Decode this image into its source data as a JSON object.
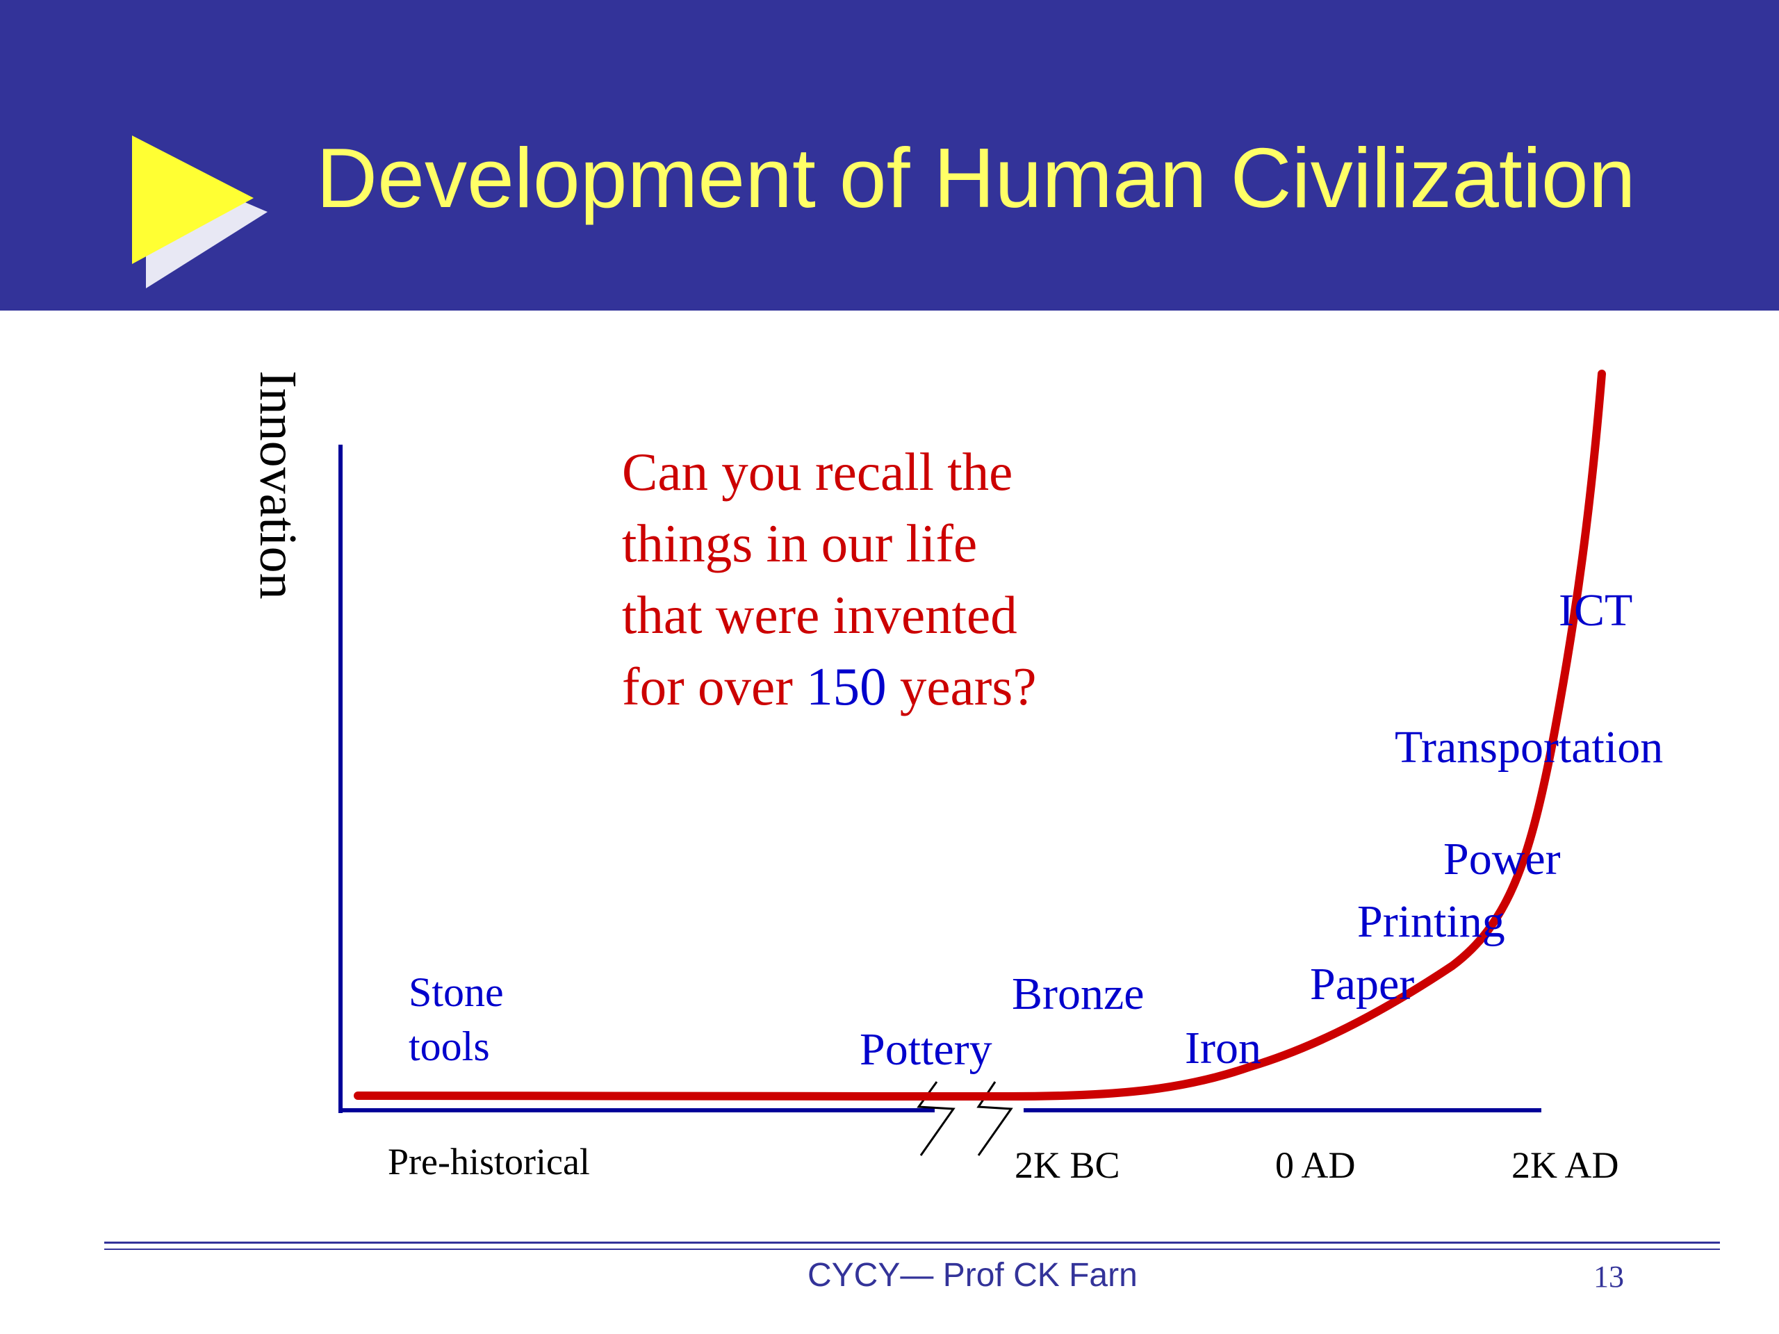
{
  "slide": {
    "title": "Development of Human Civilization",
    "footer_text": "CYCY— Prof CK Farn",
    "page_number": "13"
  },
  "question": {
    "lines": [
      "Can you recall the",
      "things in our life",
      "that were invented"
    ],
    "last_line_prefix": "for over ",
    "last_line_number": "150",
    "last_line_suffix": " years?"
  },
  "chart_data": {
    "type": "line",
    "ylabel": "Innovation",
    "x_ticks": [
      "Pre-historical",
      "2K BC",
      "0 AD",
      "2K AD"
    ],
    "axis_break": true,
    "milestones": [
      "Stone tools",
      "Pottery",
      "Bronze",
      "Iron",
      "Paper",
      "Printing",
      "Power",
      "Transportation",
      "ICT"
    ],
    "curve": "flat until 2K BC, rising gradually after 0 AD, then rising steeply near 2K AD"
  },
  "colors": {
    "header_bg": "#333399",
    "title_text": "#ffff66",
    "curve": "#cc0000",
    "axis": "#000099",
    "milestone_text": "#0000cc",
    "question_text": "#cc0000"
  }
}
